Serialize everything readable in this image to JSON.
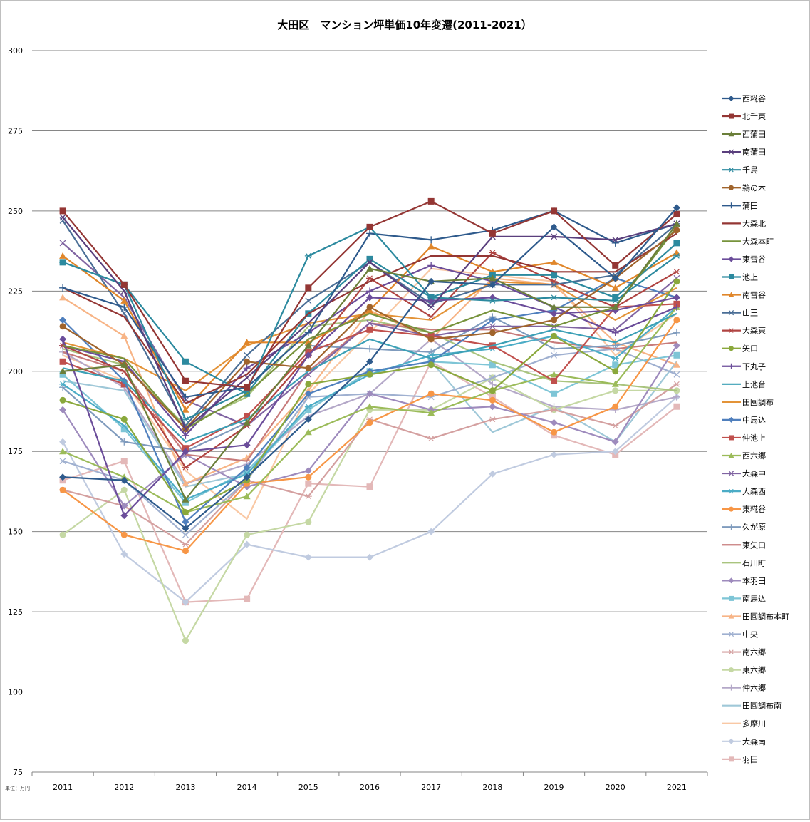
{
  "chart_data": {
    "type": "line",
    "title": "大田区　マンション坪単価10年変遷(2011-2021）",
    "unit_note": "単位：万円",
    "xlabel": "",
    "ylabel": "",
    "x": [
      "2011",
      "2012",
      "2013",
      "2014",
      "2015",
      "2016",
      "2017",
      "2018",
      "2019",
      "2020",
      "2021"
    ],
    "ylim": [
      75,
      300
    ],
    "yticks": [
      75,
      100,
      125,
      150,
      175,
      200,
      225,
      250,
      275,
      300
    ],
    "grid": true,
    "legend_position": "right",
    "series": [
      {
        "name": "西糀谷",
        "color": "#2e5a8c",
        "marker": "diamond",
        "values": [
          167,
          166,
          151,
          167,
          185,
          203,
          228,
          227,
          245,
          229,
          251
        ]
      },
      {
        "name": "北千東",
        "color": "#943634",
        "marker": "square",
        "values": [
          250,
          227,
          197,
          195,
          226,
          245,
          253,
          243,
          250,
          233,
          249
        ]
      },
      {
        "name": "西蒲田",
        "color": "#6b7f3a",
        "marker": "triangle",
        "values": [
          200,
          202,
          160,
          184,
          208,
          232,
          228,
          229,
          220,
          220,
          246
        ]
      },
      {
        "name": "南蒲田",
        "color": "#5a3f7d",
        "marker": "x",
        "values": [
          248,
          225,
          182,
          198,
          215,
          234,
          220,
          242,
          242,
          241,
          246
        ]
      },
      {
        "name": "千鳥",
        "color": "#2c8a9f",
        "marker": "star",
        "values": [
          234,
          227,
          185,
          194,
          236,
          245,
          223,
          222,
          223,
          222,
          236
        ]
      },
      {
        "name": "鵜の木",
        "color": "#a0642c",
        "marker": "circle",
        "values": [
          214,
          202,
          182,
          203,
          201,
          220,
          210,
          212,
          216,
          229,
          244
        ]
      },
      {
        "name": "蒲田",
        "color": "#2e5a8c",
        "marker": "plus",
        "values": [
          226,
          220,
          192,
          195,
          212,
          243,
          241,
          244,
          250,
          240,
          246
        ]
      },
      {
        "name": "大森北",
        "color": "#943634",
        "marker": "none",
        "values": [
          226,
          217,
          190,
          199,
          218,
          228,
          236,
          236,
          231,
          231,
          243
        ]
      },
      {
        "name": "大森本町",
        "color": "#77933c",
        "marker": "none",
        "values": [
          208,
          204,
          182,
          193,
          210,
          218,
          212,
          219,
          214,
          220,
          245
        ]
      },
      {
        "name": "東雪谷",
        "color": "#6b4d9a",
        "marker": "diamond",
        "values": [
          210,
          155,
          175,
          177,
          205,
          223,
          222,
          223,
          218,
          219,
          223
        ]
      },
      {
        "name": "池上",
        "color": "#2c8a9f",
        "marker": "square",
        "values": [
          234,
          227,
          203,
          193,
          218,
          235,
          223,
          230,
          230,
          223,
          240
        ]
      },
      {
        "name": "南雪谷",
        "color": "#e0862a",
        "marker": "triangle",
        "values": [
          236,
          222,
          188,
          209,
          209,
          219,
          239,
          231,
          234,
          226,
          237
        ]
      },
      {
        "name": "山王",
        "color": "#4a6e96",
        "marker": "x",
        "values": [
          247,
          218,
          183,
          205,
          222,
          234,
          221,
          227,
          227,
          230,
          246
        ]
      },
      {
        "name": "大森東",
        "color": "#b04442",
        "marker": "star",
        "values": [
          208,
          200,
          170,
          183,
          205,
          229,
          217,
          237,
          228,
          220,
          231
        ]
      },
      {
        "name": "矢口",
        "color": "#8aa83c",
        "marker": "circle",
        "values": [
          191,
          185,
          156,
          166,
          196,
          199,
          202,
          194,
          211,
          200,
          228
        ]
      },
      {
        "name": "下丸子",
        "color": "#6b4d9a",
        "marker": "plus",
        "values": [
          208,
          203,
          180,
          201,
          212,
          225,
          233,
          228,
          220,
          212,
          220
        ]
      },
      {
        "name": "上池台",
        "color": "#3ca0b6",
        "marker": "none",
        "values": [
          201,
          197,
          178,
          185,
          200,
          210,
          204,
          208,
          213,
          209,
          218
        ]
      },
      {
        "name": "田園調布",
        "color": "#e39338",
        "marker": "none",
        "values": [
          209,
          204,
          194,
          208,
          215,
          218,
          216,
          228,
          227,
          216,
          226
        ]
      },
      {
        "name": "中馬込",
        "color": "#4f7fbd",
        "marker": "diamond",
        "values": [
          216,
          197,
          153,
          170,
          193,
          200,
          203,
          216,
          219,
          229,
          223
        ]
      },
      {
        "name": "仲池上",
        "color": "#c0504d",
        "marker": "square",
        "values": [
          203,
          196,
          176,
          186,
          206,
          213,
          211,
          208,
          197,
          220,
          221
        ]
      },
      {
        "name": "西六郷",
        "color": "#9bbb59",
        "marker": "triangle",
        "values": [
          175,
          167,
          156,
          161,
          181,
          189,
          187,
          194,
          199,
          196,
          220
        ]
      },
      {
        "name": "大森中",
        "color": "#8064a2",
        "marker": "x",
        "values": [
          240,
          223,
          191,
          183,
          199,
          215,
          211,
          214,
          214,
          213,
          229
        ]
      },
      {
        "name": "大森西",
        "color": "#4bacc6",
        "marker": "star",
        "values": [
          196,
          183,
          160,
          168,
          189,
          199,
          205,
          207,
          211,
          204,
          220
        ]
      },
      {
        "name": "東糀谷",
        "color": "#f79646",
        "marker": "circle",
        "values": [
          163,
          149,
          144,
          165,
          167,
          184,
          193,
          191,
          181,
          189,
          216
        ]
      },
      {
        "name": "久が原",
        "color": "#7f9bbd",
        "marker": "plus",
        "values": [
          195,
          178,
          175,
          184,
          208,
          207,
          206,
          217,
          207,
          208,
          212
        ]
      },
      {
        "name": "東矢口",
        "color": "#c77b7b",
        "marker": "none",
        "values": [
          206,
          200,
          174,
          172,
          200,
          215,
          213,
          213,
          209,
          207,
          209
        ]
      },
      {
        "name": "石川町",
        "color": "#a9c47e",
        "marker": "none",
        "values": [
          207,
          202,
          183,
          192,
          214,
          216,
          212,
          203,
          197,
          196,
          194
        ]
      },
      {
        "name": "本羽田",
        "color": "#9e8bbd",
        "marker": "diamond",
        "values": [
          188,
          158,
          174,
          164,
          169,
          193,
          188,
          189,
          184,
          178,
          208
        ]
      },
      {
        "name": "南馬込",
        "color": "#7ec5d6",
        "marker": "square",
        "values": [
          199,
          182,
          159,
          169,
          188,
          200,
          203,
          202,
          193,
          202,
          205
        ]
      },
      {
        "name": "田園調布本町",
        "color": "#f7b486",
        "marker": "triangle",
        "values": [
          223,
          211,
          165,
          173,
          194,
          219,
          210,
          229,
          227,
          209,
          202
        ]
      },
      {
        "name": "中央",
        "color": "#9fb0d0",
        "marker": "x",
        "values": [
          172,
          166,
          149,
          166,
          192,
          193,
          192,
          198,
          205,
          207,
          199
        ]
      },
      {
        "name": "南六郷",
        "color": "#d4a0a0",
        "marker": "star",
        "values": [
          163,
          158,
          146,
          166,
          161,
          185,
          179,
          185,
          188,
          183,
          196
        ]
      },
      {
        "name": "東六郷",
        "color": "#c5d8a4",
        "marker": "circle",
        "values": [
          149,
          163,
          116,
          149,
          153,
          188,
          188,
          198,
          188,
          194,
          194
        ]
      },
      {
        "name": "仲六郷",
        "color": "#b4a8c8",
        "marker": "plus",
        "values": [
          206,
          195,
          165,
          171,
          186,
          193,
          210,
          196,
          189,
          188,
          192
        ]
      },
      {
        "name": "田園調布南",
        "color": "#9fc8d8",
        "marker": "none",
        "values": [
          197,
          194,
          164,
          168,
          188,
          200,
          203,
          181,
          189,
          178,
          203
        ]
      },
      {
        "name": "多摩川",
        "color": "#f9c8a4",
        "marker": "none",
        "values": [
          205,
          197,
          169,
          154,
          193,
          212,
          232,
          230,
          228,
          205,
          218
        ]
      },
      {
        "name": "大森南",
        "color": "#c0cbe0",
        "marker": "diamond",
        "values": [
          178,
          143,
          128,
          146,
          142,
          142,
          150,
          168,
          174,
          175,
          192
        ]
      },
      {
        "name": "羽田",
        "color": "#e3b8b8",
        "marker": "square",
        "values": [
          166,
          172,
          128,
          129,
          165,
          164,
          203,
          192,
          180,
          174,
          189
        ]
      }
    ]
  }
}
